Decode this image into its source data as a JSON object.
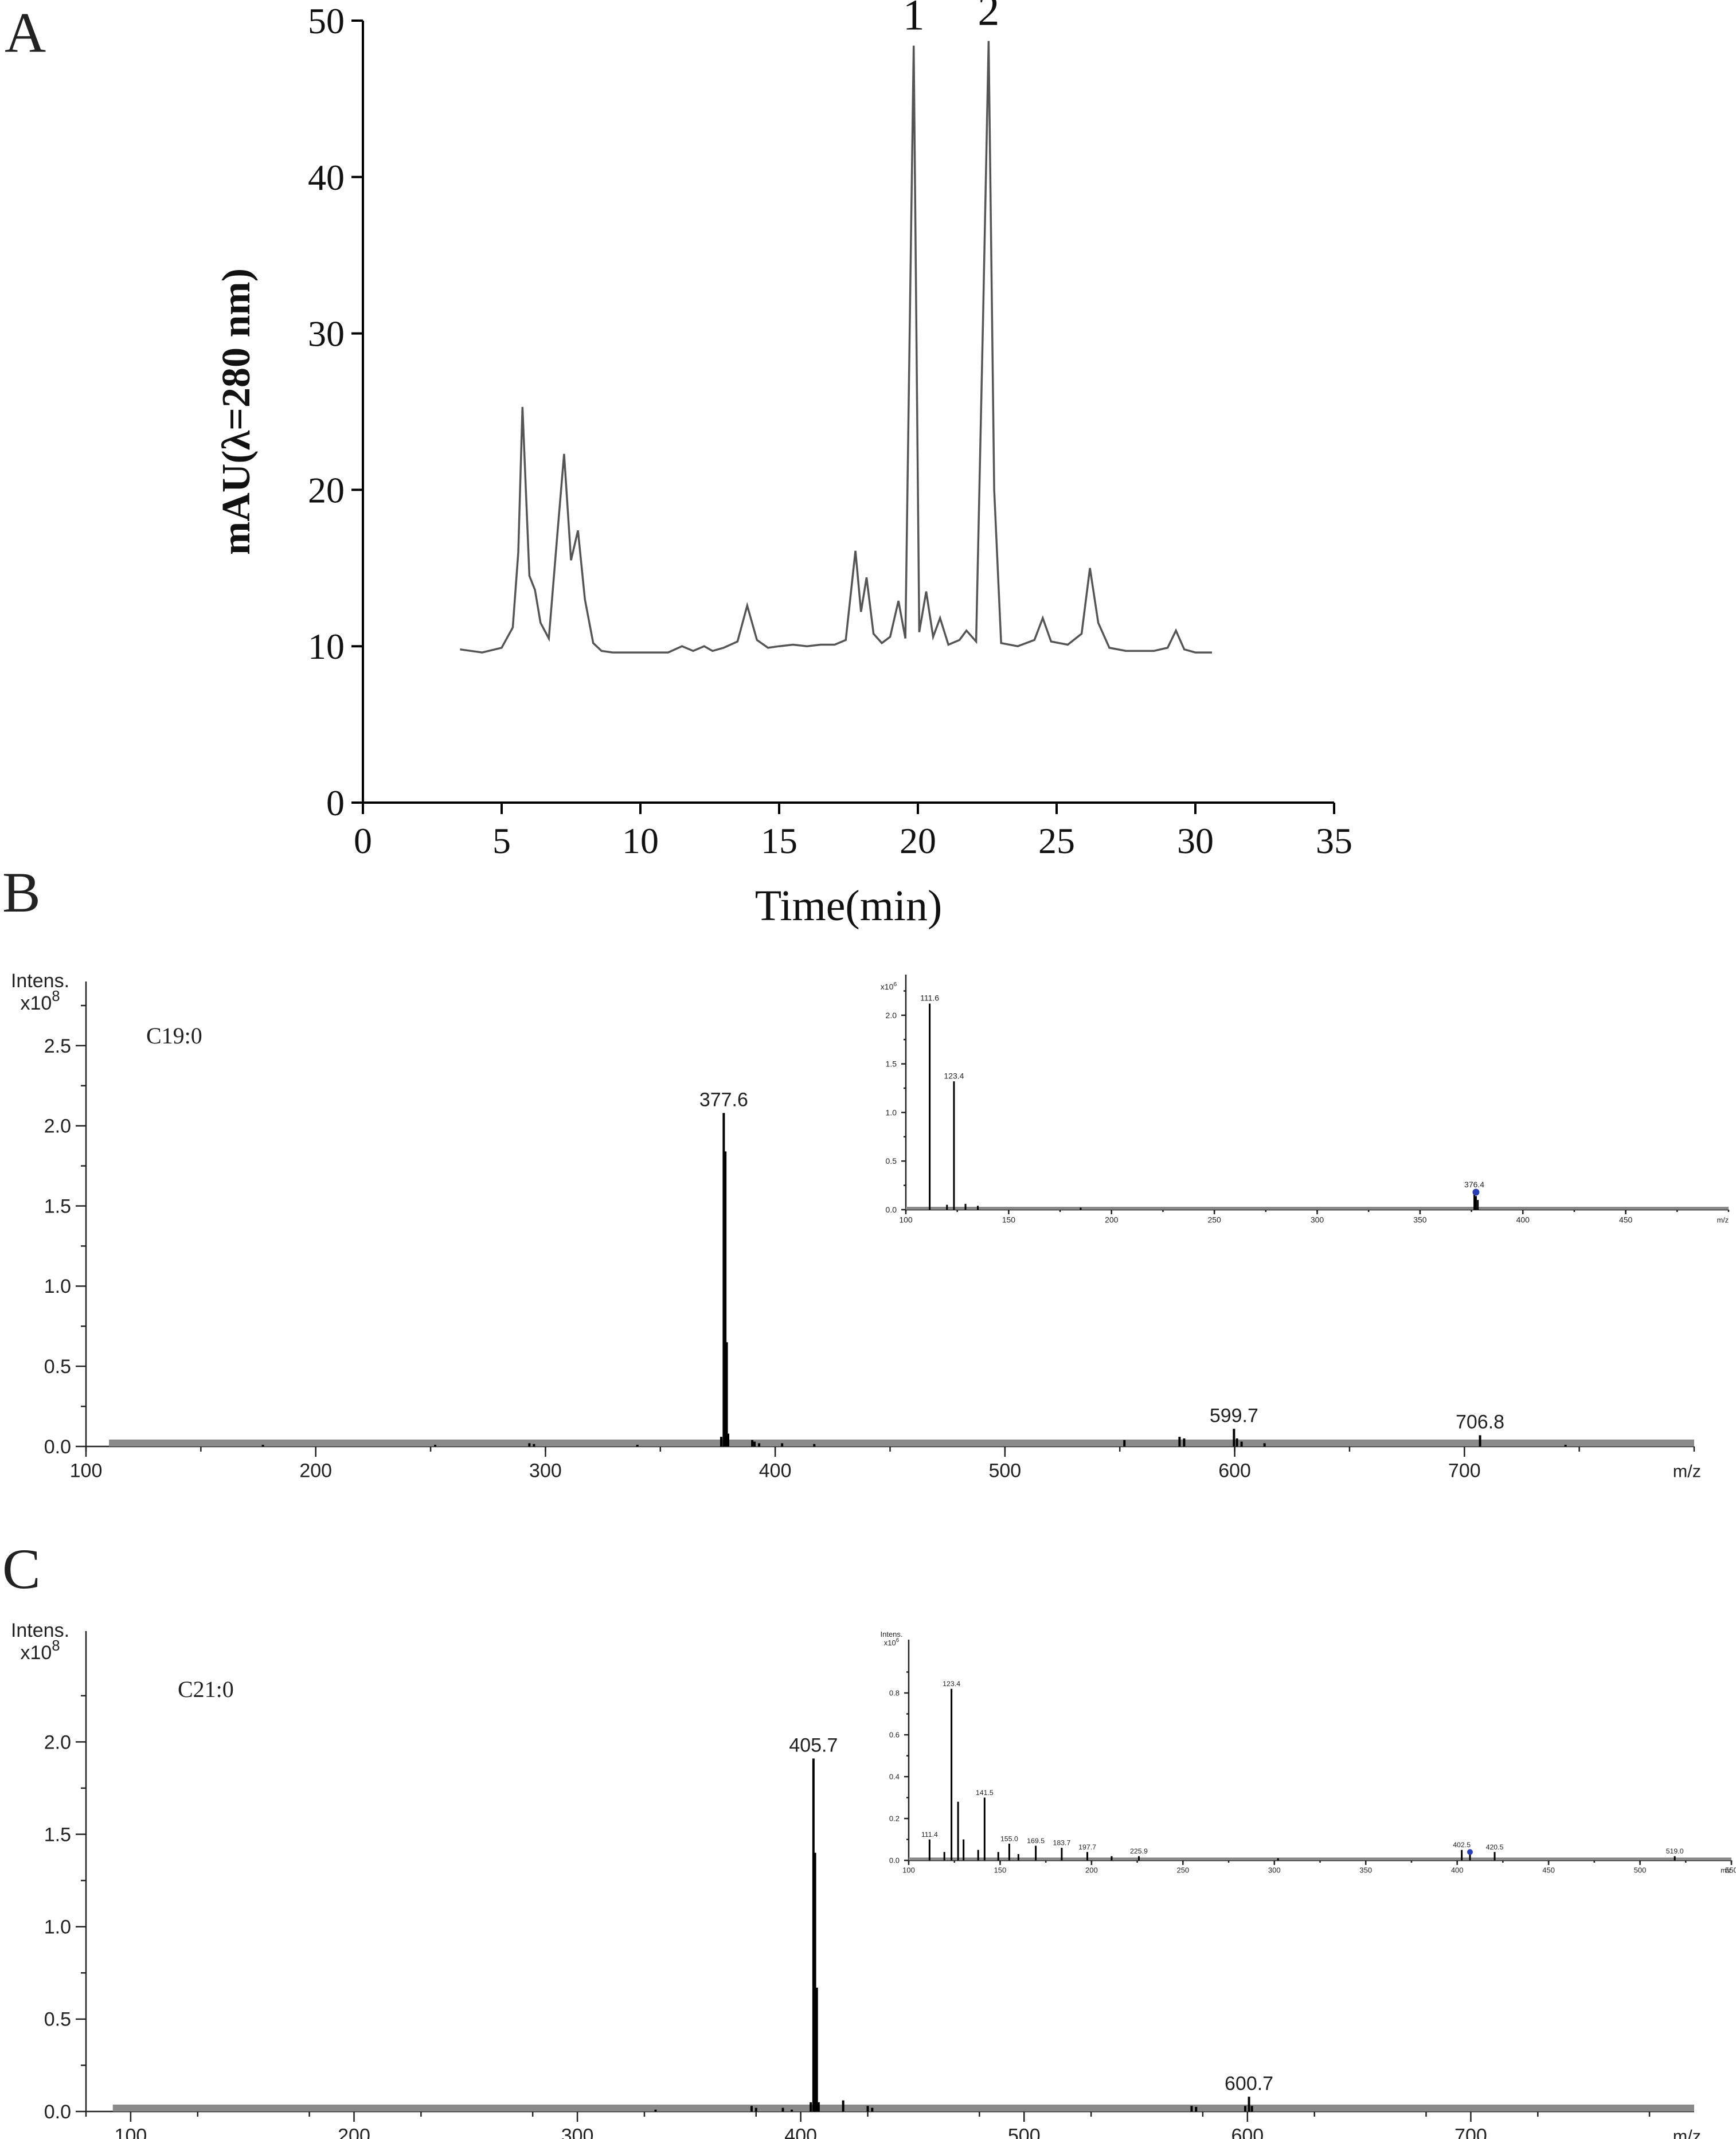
{
  "panels": {
    "a": "A",
    "b": "B",
    "c": "C"
  },
  "chart_data": [
    {
      "id": "A",
      "type": "line",
      "title": "",
      "xlabel": "Time(min)",
      "ylabel": "mAU(λ=280 nm)",
      "xlim": [
        0,
        35
      ],
      "ylim": [
        0,
        50
      ],
      "xticks": [
        0,
        5,
        10,
        15,
        20,
        25,
        30,
        35
      ],
      "yticks": [
        0,
        10,
        20,
        30,
        40,
        50
      ],
      "grid": false,
      "series": [
        {
          "x": [
            3.5,
            4.3,
            5.0,
            5.4,
            5.6,
            5.75,
            5.85,
            6.0,
            6.2,
            6.4,
            6.7,
            7.0,
            7.25,
            7.5,
            7.75,
            8.0,
            8.3,
            8.6,
            9.0,
            10.0,
            11.0,
            11.5,
            11.9,
            12.3,
            12.6,
            13.0,
            13.5,
            13.85,
            14.2,
            14.6,
            15.0,
            15.5,
            16.0,
            16.5,
            17.0,
            17.4,
            17.75,
            17.95,
            18.15,
            18.4,
            18.7,
            19.0,
            19.3,
            19.55,
            19.85,
            20.05,
            20.3,
            20.55,
            20.8,
            21.1,
            21.5,
            21.75,
            22.1,
            22.35,
            22.55,
            22.75,
            23.0,
            23.6,
            24.2,
            24.5,
            24.8,
            25.4,
            25.9,
            26.2,
            26.5,
            26.9,
            27.5,
            28.5,
            29.0,
            29.3,
            29.6,
            30.0,
            30.6
          ],
          "values": [
            9.8,
            9.6,
            9.9,
            11.2,
            16.0,
            25.3,
            21.0,
            14.5,
            13.6,
            11.5,
            10.5,
            17.0,
            22.3,
            15.5,
            17.4,
            13.0,
            10.2,
            9.7,
            9.6,
            9.6,
            9.6,
            10.0,
            9.7,
            10.0,
            9.7,
            9.9,
            10.3,
            12.6,
            10.4,
            9.9,
            10.0,
            10.1,
            10.0,
            10.1,
            10.1,
            10.4,
            16.1,
            12.2,
            14.4,
            10.8,
            10.2,
            10.6,
            12.9,
            10.5,
            48.4,
            10.9,
            13.5,
            10.6,
            11.8,
            10.1,
            10.4,
            11.0,
            10.3,
            31.0,
            48.7,
            20.0,
            10.2,
            10.0,
            10.4,
            11.8,
            10.3,
            10.1,
            10.8,
            15.0,
            11.5,
            9.9,
            9.7,
            9.7,
            9.9,
            11.0,
            9.8,
            9.6,
            9.6
          ]
        }
      ],
      "annotations": [
        {
          "text": "1",
          "x": 19.85,
          "y": 48.4
        },
        {
          "text": "2",
          "x": 22.55,
          "y": 48.7
        }
      ]
    },
    {
      "id": "B",
      "type": "bar",
      "title": "",
      "xlabel": "m/z",
      "ylabel": "Intens.",
      "y_multiplier": "x10",
      "y_exponent": "8",
      "label": "C19:0",
      "xlim": [
        100,
        800
      ],
      "ylim": [
        0,
        2.9
      ],
      "xticks": [
        100,
        200,
        300,
        400,
        500,
        600,
        700
      ],
      "yticks": [
        "0.0",
        "0.5",
        "1.0",
        "1.5",
        "2.0",
        "2.5"
      ],
      "grid": false,
      "peaks": {
        "x": [
          177,
          252,
          293,
          295,
          340,
          376.5,
          377.6,
          378.3,
          378.9,
          379.5,
          390,
          391,
          393,
          403,
          417,
          552,
          576,
          578,
          599.7,
          601,
          603,
          613,
          706.8,
          744
        ],
        "y": [
          0.01,
          0.01,
          0.02,
          0.015,
          0.01,
          0.06,
          2.08,
          1.84,
          0.65,
          0.08,
          0.04,
          0.03,
          0.02,
          0.02,
          0.015,
          0.04,
          0.06,
          0.05,
          0.11,
          0.05,
          0.03,
          0.02,
          0.07,
          0.01
        ]
      },
      "peak_labels": [
        {
          "x": 377.6,
          "text": "377.6"
        },
        {
          "x": 599.7,
          "text": "599.7"
        },
        {
          "x": 706.8,
          "text": "706.8"
        }
      ],
      "inset": {
        "y_multiplier": "x10",
        "y_exponent": "6",
        "xlabel": "m/z",
        "xlim": [
          100,
          500
        ],
        "ylim": [
          0,
          2.3
        ],
        "xticks": [
          "100",
          "150",
          "200",
          "250",
          "300",
          "350",
          "400",
          "450"
        ],
        "yticks": [
          "0.0",
          "0.5",
          "1.0",
          "1.5",
          "2.0"
        ],
        "peaks": {
          "x": [
            111.6,
            123.4,
            120,
            129,
            135,
            185,
            376.4,
            377.2,
            378.1
          ],
          "y": [
            2.12,
            1.32,
            0.05,
            0.06,
            0.04,
            0.02,
            0.2,
            0.14,
            0.1
          ]
        },
        "peak_labels": [
          {
            "x": 111.6,
            "text": "111.6"
          },
          {
            "x": 123.4,
            "text": "123.4"
          },
          {
            "x": 376.4,
            "text": "376.4"
          }
        ],
        "marker_x": 377.2,
        "marker_y": 0.18
      }
    },
    {
      "id": "C",
      "type": "bar",
      "title": "",
      "xlabel": "m/z",
      "ylabel": "Intens.",
      "y_multiplier": "x10",
      "y_exponent": "8",
      "label": "C21:0",
      "xlim": [
        80,
        800
      ],
      "ylim": [
        0,
        2.6
      ],
      "xticks": [
        100,
        200,
        300,
        400,
        500,
        600,
        700
      ],
      "yticks": [
        "0.0",
        "0.5",
        "1.0",
        "1.5",
        "2.0"
      ],
      "grid": false,
      "peaks": {
        "x": [
          335,
          378,
          380,
          392,
          396,
          404.5,
          405.7,
          406.4,
          407.2,
          408,
          419,
          430,
          432,
          575,
          577,
          599,
          600.7,
          602
        ],
        "y": [
          0.01,
          0.03,
          0.02,
          0.02,
          0.01,
          0.05,
          1.91,
          1.4,
          0.67,
          0.05,
          0.06,
          0.03,
          0.02,
          0.03,
          0.025,
          0.03,
          0.08,
          0.03
        ]
      },
      "peak_labels": [
        {
          "x": 405.7,
          "text": "405.7"
        },
        {
          "x": 600.7,
          "text": "600.7"
        }
      ],
      "inset": {
        "ylabel": "Intens.",
        "y_multiplier": "x10",
        "y_exponent": "6",
        "xlabel": "m/z",
        "xlim": [
          100,
          550
        ],
        "ylim": [
          0,
          1.0
        ],
        "xticks": [
          "100",
          "150",
          "200",
          "250",
          "300",
          "350",
          "400",
          "450",
          "500",
          "550"
        ],
        "yticks": [
          "0.0",
          "0.2",
          "0.4",
          "0.6",
          "0.8"
        ],
        "peaks": {
          "x": [
            111.4,
            119.5,
            123.4,
            127,
            130,
            138,
            141.5,
            149,
            155.0,
            160,
            169.5,
            183.7,
            197.7,
            211,
            225.9,
            302,
            402.5,
            407,
            420.5,
            519.0
          ],
          "y": [
            0.1,
            0.04,
            0.82,
            0.28,
            0.1,
            0.05,
            0.3,
            0.04,
            0.08,
            0.03,
            0.07,
            0.06,
            0.04,
            0.02,
            0.02,
            0.01,
            0.05,
            0.03,
            0.04,
            0.02
          ]
        },
        "peak_labels": [
          {
            "x": 111.4,
            "text": "111.4"
          },
          {
            "x": 123.4,
            "text": "123.4"
          },
          {
            "x": 141.5,
            "text": "141.5"
          },
          {
            "x": 155.0,
            "text": "155.0"
          },
          {
            "x": 169.5,
            "text": "169.5"
          },
          {
            "x": 183.7,
            "text": "183.7"
          },
          {
            "x": 197.7,
            "text": "197.7"
          },
          {
            "x": 225.9,
            "text": "225.9"
          },
          {
            "x": 402.5,
            "text": "402.5"
          },
          {
            "x": 420.5,
            "text": "420.5"
          },
          {
            "x": 519.0,
            "text": "519.0"
          }
        ],
        "marker_x": 407,
        "marker_y": 0.04
      }
    }
  ]
}
